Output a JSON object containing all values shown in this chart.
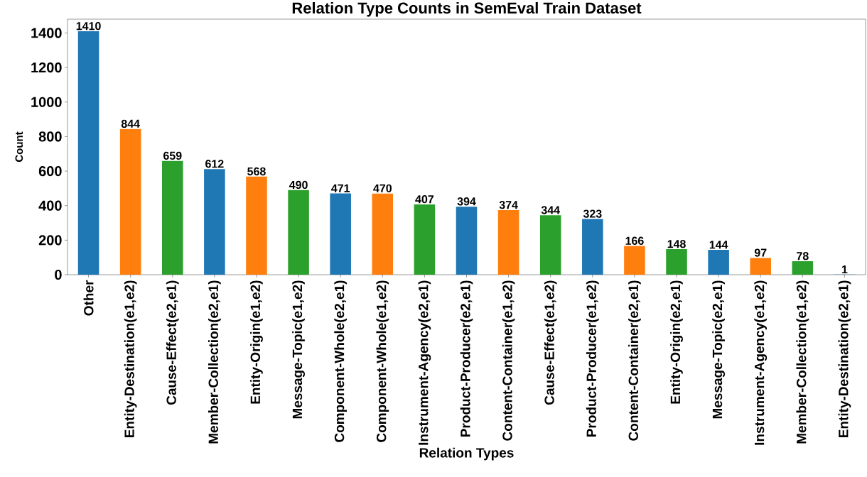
{
  "chart_data": {
    "type": "bar",
    "title": "Relation Type Counts in SemEval Train Dataset",
    "xlabel": "Relation Types",
    "ylabel": "Count",
    "categories": [
      "Other",
      "Entity-Destination(e1,e2)",
      "Cause-Effect(e2,e1)",
      "Member-Collection(e2,e1)",
      "Entity-Origin(e1,e2)",
      "Message-Topic(e1,e2)",
      "Component-Whole(e2,e1)",
      "Component-Whole(e1,e2)",
      "Instrument-Agency(e2,e1)",
      "Product-Producer(e2,e1)",
      "Content-Container(e1,e2)",
      "Cause-Effect(e1,e2)",
      "Product-Producer(e1,e2)",
      "Content-Container(e2,e1)",
      "Entity-Origin(e2,e1)",
      "Message-Topic(e2,e1)",
      "Instrument-Agency(e1,e2)",
      "Member-Collection(e1,e2)",
      "Entity-Destination(e2,e1)"
    ],
    "values": [
      1410,
      844,
      659,
      612,
      568,
      490,
      471,
      470,
      407,
      394,
      374,
      344,
      323,
      166,
      148,
      144,
      97,
      78,
      1
    ],
    "colors": [
      "#1f77b4",
      "#ff7f0e",
      "#2ca02c",
      "#1f77b4",
      "#ff7f0e",
      "#2ca02c",
      "#1f77b4",
      "#ff7f0e",
      "#2ca02c",
      "#1f77b4",
      "#ff7f0e",
      "#2ca02c",
      "#1f77b4",
      "#ff7f0e",
      "#2ca02c",
      "#1f77b4",
      "#ff7f0e",
      "#2ca02c",
      "#1f77b4"
    ],
    "ylim": [
      0,
      1480
    ],
    "yticks": [
      0,
      200,
      400,
      600,
      800,
      1000,
      1200,
      1400
    ],
    "data_labels": true,
    "grid": false
  }
}
